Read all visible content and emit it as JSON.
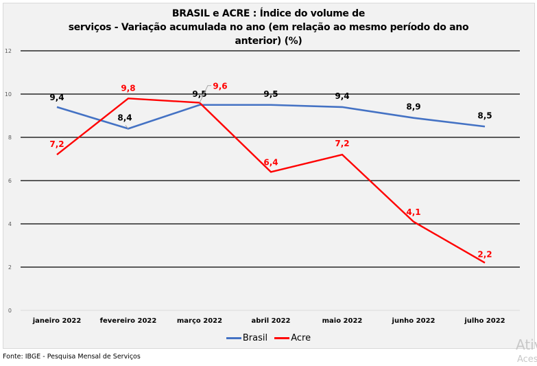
{
  "chart_data": {
    "type": "line",
    "title_lines": [
      "BRASIL e ACRE : Índice do volume de",
      "serviços - Variação acumulada no ano (em relação ao mesmo período do ano",
      "anterior)  (%)"
    ],
    "categories": [
      "janeiro 2022",
      "fevereiro 2022",
      "março 2022",
      "abril 2022",
      "maio 2022",
      "junho 2022",
      "julho 2022"
    ],
    "series": [
      {
        "name": "Brasil",
        "color": "#4472c4",
        "values": [
          9.4,
          8.4,
          9.5,
          9.5,
          9.4,
          8.9,
          8.5
        ],
        "labels": [
          "9,4",
          "8,4",
          "9,5",
          "9,5",
          "9,4",
          "8,9",
          "8,5"
        ],
        "label_color": "#000000"
      },
      {
        "name": "Acre",
        "color": "#ff0000",
        "values": [
          7.2,
          9.8,
          9.6,
          6.4,
          7.2,
          4.1,
          2.2
        ],
        "labels": [
          "7,2",
          "9,8",
          "9,6",
          "6,4",
          "7,2",
          "4,1",
          "2,2"
        ],
        "label_color": "#ff0000"
      }
    ],
    "y_ticks": [
      "0",
      "2",
      "4",
      "6",
      "8",
      "10",
      "12"
    ],
    "ylim": [
      0,
      12
    ],
    "xlabel": "",
    "ylabel": "",
    "grid": true,
    "legend_position": "bottom"
  },
  "footer": {
    "source": "Fonte: IBGE - Pesquisa Mensal de Serviços"
  },
  "overlay": {
    "watermark_line1": "Ativ",
    "watermark_line2": "Aces"
  }
}
